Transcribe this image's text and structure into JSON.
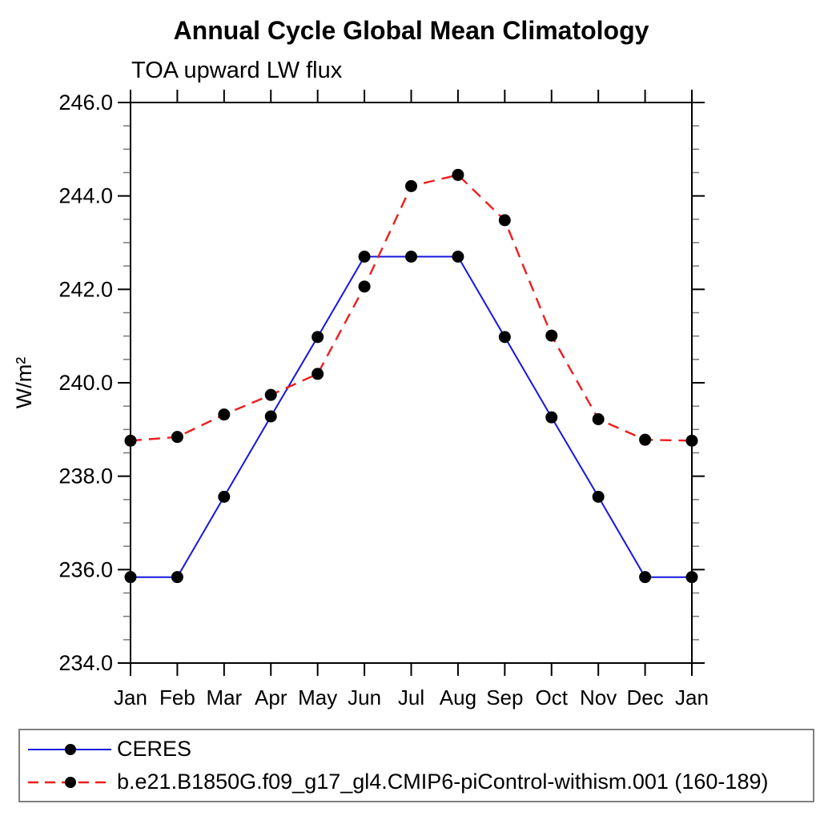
{
  "chart_data": {
    "type": "line",
    "title": "Annual Cycle Global Mean Climatology",
    "subtitle": "TOA upward LW flux",
    "xlabel": "",
    "ylabel": "W/m²",
    "categories": [
      "Jan",
      "Feb",
      "Mar",
      "Apr",
      "May",
      "Jun",
      "Jul",
      "Aug",
      "Sep",
      "Oct",
      "Nov",
      "Dec",
      "Jan"
    ],
    "series": [
      {
        "name": "CERES",
        "color": "#1515e0",
        "line_style": "solid",
        "line_width": 2,
        "marker": "filled-circle",
        "marker_color": "#000000",
        "values": [
          235.84,
          235.84,
          237.56,
          239.28,
          240.98,
          242.7,
          242.7,
          242.7,
          240.98,
          239.26,
          237.56,
          235.84,
          235.84
        ]
      },
      {
        "name": "b.e21.B1850G.f09_g17_gl4.CMIP6-piControl-withism.001 (160-189)",
        "color": "#ee1c1c",
        "line_style": "dashed",
        "line_width": 2.4,
        "marker": "filled-circle",
        "marker_color": "#000000",
        "values": [
          238.76,
          238.84,
          239.32,
          239.74,
          240.19,
          242.06,
          244.21,
          244.45,
          243.48,
          241.01,
          239.22,
          238.78,
          238.76
        ]
      }
    ],
    "ylim": [
      234.0,
      246.0
    ],
    "ytick_major_step": 2.0,
    "ytick_minor_step": 0.5,
    "ytick_labels": [
      "234.0",
      "236.0",
      "238.0",
      "240.0",
      "242.0",
      "244.0",
      "246.0"
    ],
    "grid": false,
    "legend_position": "bottom"
  }
}
